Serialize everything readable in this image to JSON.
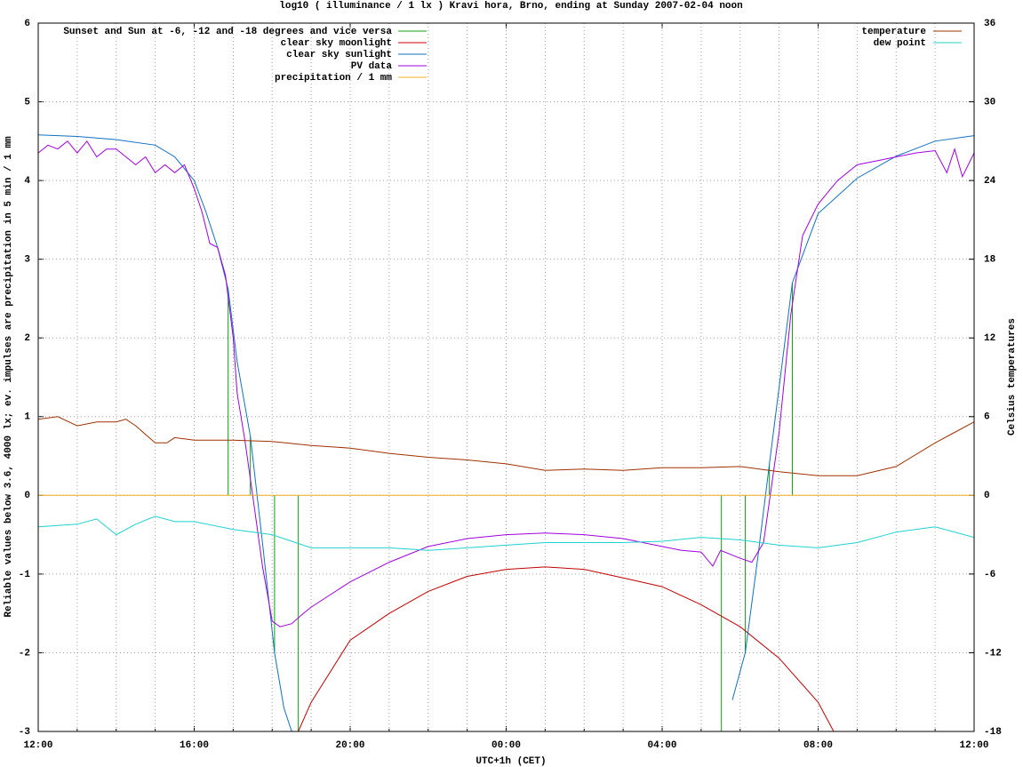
{
  "chart_data": {
    "type": "line",
    "title": "log10 ( illuminance / 1 lx ) Kravi hora, Brno, ending at Sunday 2007-02-04 noon",
    "xlabel": "UTC+1h (CET)",
    "ylabel": "Reliable values below 3.6, 4000 lx; ev. impulses are precipitation in 5 min / 1 mm",
    "y2label": "Celsius temperatures",
    "xlim": [
      0,
      24
    ],
    "xticks": [
      {
        "value": 0,
        "label": "12:00"
      },
      {
        "value": 4,
        "label": "16:00"
      },
      {
        "value": 8,
        "label": "20:00"
      },
      {
        "value": 12,
        "label": "00:00"
      },
      {
        "value": 16,
        "label": "04:00"
      },
      {
        "value": 20,
        "label": "08:00"
      },
      {
        "value": 24,
        "label": "12:00"
      }
    ],
    "xminorticks": [
      1,
      2,
      3,
      5,
      6,
      7,
      9,
      10,
      11,
      13,
      14,
      15,
      17,
      18,
      19,
      21,
      22,
      23
    ],
    "ylim": [
      -3,
      6
    ],
    "yticks": [
      -3,
      -2,
      -1,
      0,
      1,
      2,
      3,
      4,
      5,
      6
    ],
    "y2lim": [
      -18,
      36
    ],
    "y2ticks": [
      -18,
      -12,
      -6,
      0,
      6,
      12,
      18,
      24,
      30,
      36
    ],
    "grid": true,
    "legend": "top left",
    "legend2": "top right",
    "series": [
      {
        "name": "Sunset and Sun at -6, -12 and -18 degrees and vice versa",
        "color": "#10a010",
        "style": "impulses",
        "x": [
          4.87,
          5.44,
          6.06,
          6.67,
          17.52,
          18.13,
          18.75,
          19.34
        ],
        "values": [
          2.62,
          0.75,
          -2.0,
          -3,
          -3,
          -2.0,
          0.4,
          2.7
        ]
      },
      {
        "name": "clear sky moonlight",
        "color": "#c00000",
        "style": "lines",
        "x": [
          6.67,
          7,
          8,
          9,
          10,
          11,
          12,
          13,
          14,
          15,
          16,
          17,
          18,
          19,
          20,
          20.4
        ],
        "values": [
          -3,
          -2.63,
          -1.84,
          -1.5,
          -1.22,
          -1.03,
          -0.94,
          -0.91,
          -0.94,
          -1.05,
          -1.16,
          -1.39,
          -1.67,
          -2.07,
          -2.63,
          -3
        ]
      },
      {
        "name": "clear sky sunlight",
        "color": "#1070c0",
        "style": "lines",
        "x": [
          0,
          1,
          2,
          3,
          3.5,
          4,
          4.3,
          4.6,
          4.87,
          5.1,
          5.44,
          5.75,
          6.06,
          6.3,
          6.5,
          17.5,
          17.8,
          18.13,
          18.45,
          18.75,
          19.34,
          20,
          21,
          22,
          23,
          24
        ],
        "values": [
          4.58,
          4.56,
          4.52,
          4.45,
          4.3,
          4.0,
          3.6,
          3.15,
          2.62,
          1.7,
          0.75,
          -0.6,
          -2.0,
          -2.7,
          -3,
          null,
          -2.6,
          -2.0,
          -0.8,
          0.4,
          2.7,
          3.58,
          4.03,
          4.31,
          4.5,
          4.57
        ]
      },
      {
        "name": "PV data",
        "color": "#a000e0",
        "style": "lines",
        "x": [
          0,
          0.25,
          0.5,
          0.75,
          1,
          1.25,
          1.5,
          1.75,
          2,
          2.25,
          2.5,
          2.75,
          3,
          3.25,
          3.5,
          3.75,
          4,
          4.2,
          4.4,
          4.6,
          4.8,
          5,
          5.1,
          5.3,
          5.5,
          5.75,
          6,
          6.2,
          6.5,
          6.8,
          7,
          8,
          9,
          10,
          11,
          12,
          13,
          14,
          15,
          16,
          16.5,
          17,
          17.3,
          17.5,
          18,
          18.3,
          18.6,
          19,
          19.3,
          19.6,
          20,
          20.5,
          21,
          21.5,
          22,
          22.5,
          23,
          23.3,
          23.5,
          23.7,
          24
        ],
        "values": [
          4.35,
          4.45,
          4.4,
          4.5,
          4.35,
          4.5,
          4.3,
          4.4,
          4.4,
          4.3,
          4.2,
          4.3,
          4.1,
          4.2,
          4.1,
          4.2,
          3.9,
          3.6,
          3.2,
          3.15,
          2.8,
          2.0,
          1.3,
          0.7,
          0.0,
          -0.9,
          -1.6,
          -1.67,
          -1.63,
          -1.5,
          -1.42,
          -1.1,
          -0.85,
          -0.65,
          -0.55,
          -0.5,
          -0.48,
          -0.5,
          -0.55,
          -0.65,
          -0.7,
          -0.72,
          -0.9,
          -0.7,
          -0.8,
          -0.85,
          -0.6,
          0.8,
          2.3,
          3.3,
          3.7,
          4.0,
          4.2,
          4.25,
          4.3,
          4.35,
          4.38,
          4.1,
          4.4,
          4.05,
          4.35
        ]
      },
      {
        "name": "precipitation / 1 mm",
        "color": "#f0b020",
        "style": "lines",
        "x": [
          0,
          24
        ],
        "values": [
          0,
          0
        ]
      },
      {
        "name": "temperature",
        "color": "#a03000",
        "style": "lines",
        "axis": "y2",
        "x": [
          0,
          0.5,
          1,
          1.5,
          2,
          2.25,
          2.5,
          3,
          3.3,
          3.5,
          4,
          5,
          6,
          7,
          8,
          9,
          10,
          11,
          12,
          13,
          14,
          15,
          16,
          17,
          18,
          19,
          20,
          21,
          22,
          23,
          23.5,
          24
        ],
        "values": [
          5.8,
          6.0,
          5.3,
          5.6,
          5.6,
          5.8,
          5.3,
          4.0,
          4.0,
          4.4,
          4.2,
          4.2,
          4.1,
          3.8,
          3.6,
          3.2,
          2.9,
          2.7,
          2.4,
          1.9,
          2.0,
          1.9,
          2.1,
          2.1,
          2.2,
          1.8,
          1.5,
          1.5,
          2.2,
          4.0,
          4.8,
          5.6
        ]
      },
      {
        "name": "dew point",
        "color": "#20d0d0",
        "style": "lines",
        "axis": "y2",
        "x": [
          0,
          1,
          1.5,
          2,
          2.5,
          3,
          3.5,
          4,
          5,
          6,
          7,
          8,
          9,
          10,
          11,
          12,
          13,
          14,
          15,
          16,
          17,
          18,
          19,
          20,
          21,
          22,
          23,
          24
        ],
        "values": [
          -2.4,
          -2.2,
          -1.8,
          -3.0,
          -2.2,
          -1.6,
          -2.0,
          -2.0,
          -2.6,
          -3.0,
          -4.0,
          -4.0,
          -4.0,
          -4.2,
          -4.0,
          -3.8,
          -3.6,
          -3.6,
          -3.6,
          -3.5,
          -3.2,
          -3.4,
          -3.8,
          -4.0,
          -3.6,
          -2.8,
          -2.4,
          -3.2
        ]
      }
    ]
  }
}
